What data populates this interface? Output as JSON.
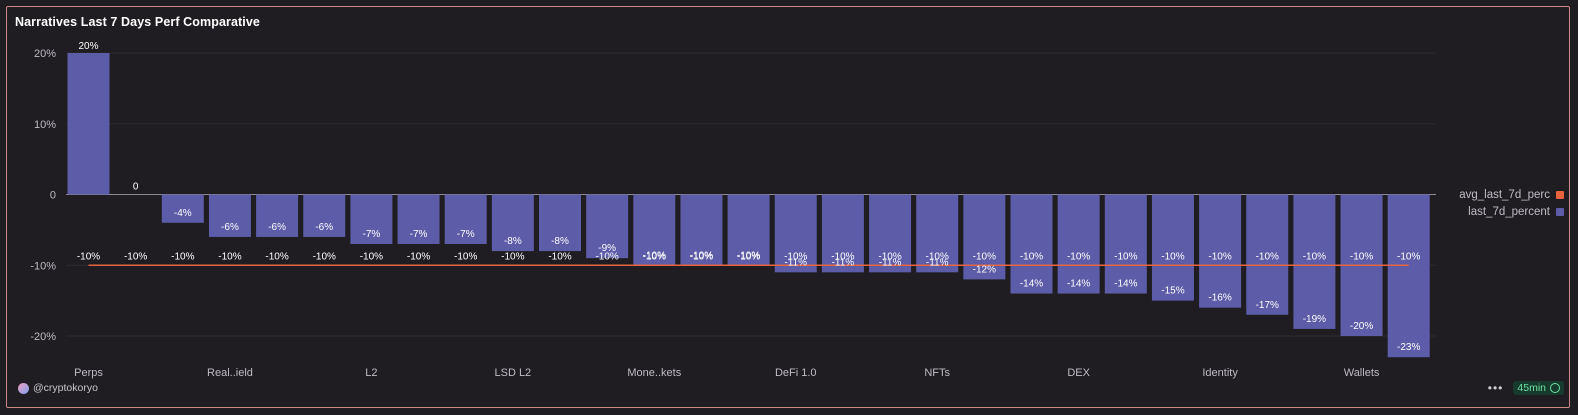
{
  "title": "Narratives Last 7 Days Perf Comparative",
  "legend": {
    "items": [
      {
        "label": "avg_last_7d_perc",
        "color": "#e8643f"
      },
      {
        "label": "last_7d_percent",
        "color": "#5c5ca8"
      }
    ]
  },
  "footer": {
    "author": "@cryptokoryo",
    "menu_glyph": "•••",
    "refresh_badge": "45min"
  },
  "chart_data": {
    "type": "bar",
    "ylim": [
      -23,
      20
    ],
    "yticks": [
      20,
      10,
      0,
      -10,
      -20
    ],
    "ytick_labels": [
      "20%",
      "10%",
      "0",
      "-10%",
      "-20%"
    ],
    "xtick_labels": [
      {
        "index": 0,
        "label": "Perps"
      },
      {
        "index": 3,
        "label": "Real..ield"
      },
      {
        "index": 6,
        "label": "L2"
      },
      {
        "index": 9,
        "label": "LSD L2"
      },
      {
        "index": 12,
        "label": "Mone..kets"
      },
      {
        "index": 15,
        "label": "DeFi 1.0"
      },
      {
        "index": 18,
        "label": "NFTs"
      },
      {
        "index": 21,
        "label": "DEX"
      },
      {
        "index": 24,
        "label": "Identity"
      },
      {
        "index": 27,
        "label": "Wallets"
      }
    ],
    "series": [
      {
        "name": "last_7d_percent",
        "color": "#5c5ca8",
        "values": [
          20,
          0,
          -4,
          -6,
          -6,
          -6,
          -7,
          -7,
          -7,
          -8,
          -8,
          -9,
          -10,
          -10,
          -10,
          -11,
          -11,
          -11,
          -11,
          -12,
          -14,
          -14,
          -14,
          -15,
          -16,
          -17,
          -19,
          -20,
          -23
        ],
        "data_labels": [
          "20%",
          "0",
          "-4%",
          "-6%",
          "-6%",
          "-6%",
          "-7%",
          "-7%",
          "-7%",
          "-8%",
          "-8%",
          "-9%",
          "-10%",
          "-10%",
          "-10%",
          "-11%",
          "-11%",
          "-11%",
          "-11%",
          "-12%",
          "-14%",
          "-14%",
          "-14%",
          "-15%",
          "-16%",
          "-17%",
          "-19%",
          "-20%",
          "-23%"
        ]
      },
      {
        "name": "avg_last_7d_perc",
        "color": "#e8643f",
        "value": -10,
        "data_label": "-10%"
      }
    ]
  }
}
